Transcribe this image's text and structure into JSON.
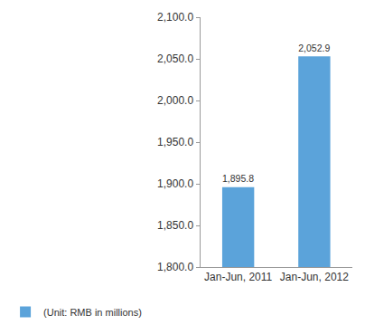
{
  "chart_data": {
    "type": "bar",
    "categories": [
      "Jan-Jun, 2011",
      "Jan-Jun, 2012"
    ],
    "series": [
      {
        "name": "(Unit: RMB in millions)",
        "color": "#5ba3da",
        "values": [
          1895.8,
          2052.9
        ],
        "value_labels": [
          "1,895.8",
          "2,052.9"
        ]
      }
    ],
    "ylim": [
      1800,
      2100
    ],
    "yticks": [
      {
        "value": 1800,
        "label": "1,800.0"
      },
      {
        "value": 1850,
        "label": "1,850.0"
      },
      {
        "value": 1900,
        "label": "1,900.0"
      },
      {
        "value": 1950,
        "label": "1,950.0"
      },
      {
        "value": 2000,
        "label": "2,000.0"
      },
      {
        "value": 2050,
        "label": "2,050.0"
      },
      {
        "value": 2100,
        "label": "2,100.0"
      }
    ],
    "grid": false,
    "data_labels": true,
    "legend": "bottom left"
  }
}
